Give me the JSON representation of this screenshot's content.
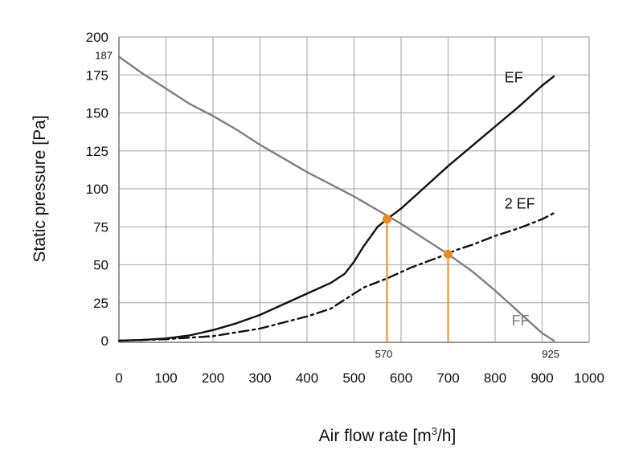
{
  "chart_data": {
    "type": "line",
    "xlabel": "Air flow rate",
    "xunit_prefix": "[m",
    "xunit_sup": "3",
    "xunit_suffix": "/h]",
    "ylabel": "Static pressure  [Pa]",
    "xlim": [
      0,
      1000
    ],
    "ylim": [
      0,
      200
    ],
    "x_ticks": [
      "0",
      "100",
      "200",
      "300",
      "400",
      "500",
      "600",
      "700",
      "800",
      "900",
      "1000"
    ],
    "y_ticks": [
      "0",
      "25",
      "50",
      "75",
      "100",
      "125",
      "150",
      "175",
      "200"
    ],
    "y_extra_tick": {
      "label": "187",
      "value": 187
    },
    "x_extra_ticks": [
      {
        "label": "570",
        "value": 570
      },
      {
        "label": "925",
        "value": 925
      }
    ],
    "grid": true,
    "colors": {
      "grid": "#b5b5b5",
      "ef": "#111111",
      "ff": "#7f7f7f",
      "two_ef": "#111111",
      "marker": "#ef8a1e"
    },
    "series": [
      {
        "name": "FF",
        "style": "solid",
        "color": "#7f7f7f",
        "x": [
          0,
          50,
          100,
          150,
          200,
          250,
          300,
          350,
          400,
          450,
          500,
          550,
          600,
          650,
          700,
          750,
          800,
          850,
          900,
          925
        ],
        "y": [
          187,
          176,
          166,
          156,
          148,
          139,
          129,
          120,
          111,
          103,
          95,
          86,
          77,
          67,
          57,
          46,
          33,
          19,
          5,
          0
        ]
      },
      {
        "name": "EF",
        "style": "solid",
        "color": "#111111",
        "x": [
          0,
          50,
          100,
          150,
          200,
          250,
          300,
          350,
          400,
          450,
          480,
          500,
          520,
          550,
          570,
          600,
          650,
          700,
          750,
          800,
          850,
          900,
          925
        ],
        "y": [
          0,
          0.5,
          1.5,
          3.5,
          7,
          11.5,
          17,
          24,
          31,
          38,
          44,
          52,
          62,
          75,
          80,
          87,
          101,
          115,
          128,
          141,
          154,
          168,
          174
        ]
      },
      {
        "name": "2 EF",
        "style": "dashdot",
        "color": "#111111",
        "x": [
          0,
          100,
          200,
          300,
          400,
          450,
          480,
          520,
          570,
          620,
          680,
          720,
          750,
          800,
          850,
          900,
          925
        ],
        "y": [
          0,
          1,
          3,
          8,
          16,
          21,
          27,
          35,
          41,
          48,
          55,
          60,
          63,
          69,
          74,
          80,
          84
        ]
      }
    ],
    "series_labels": [
      {
        "text": "EF",
        "at_x": 820,
        "at_y": 170
      },
      {
        "text": "2 EF",
        "at_x": 820,
        "at_y": 87
      },
      {
        "text": "FF",
        "at_x": 835,
        "at_y": 10
      }
    ],
    "operating_points": [
      {
        "x": 570,
        "y": 80
      },
      {
        "x": 700,
        "y": 57
      }
    ]
  }
}
